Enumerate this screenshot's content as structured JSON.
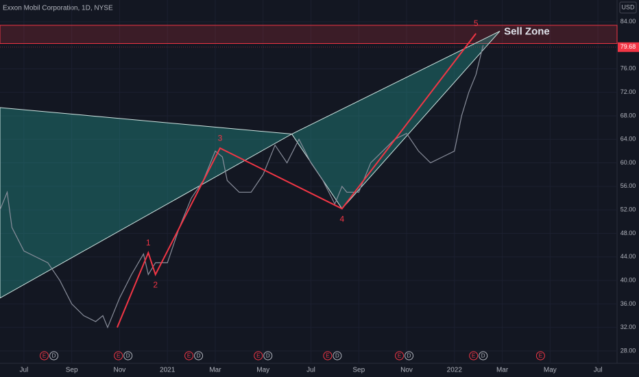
{
  "chart_data": {
    "type": "candlestick-pattern",
    "title": "Exxon Mobil Corporation, 1D, NYSE",
    "currency": "USD",
    "xlim": [
      0,
      25.8
    ],
    "xticks": [
      {
        "value": 1,
        "label": "Jul"
      },
      {
        "value": 3,
        "label": "Sep"
      },
      {
        "value": 5,
        "label": "Nov"
      },
      {
        "value": 7,
        "label": "2021"
      },
      {
        "value": 9,
        "label": "Mar"
      },
      {
        "value": 11,
        "label": "May"
      },
      {
        "value": 13,
        "label": "Jul"
      },
      {
        "value": 15,
        "label": "Sep"
      },
      {
        "value": 17,
        "label": "Nov"
      },
      {
        "value": 19,
        "label": "2022"
      },
      {
        "value": 21,
        "label": "Mar"
      },
      {
        "value": 23,
        "label": "May"
      },
      {
        "value": 25,
        "label": "Jul"
      }
    ],
    "ylim": [
      25.9,
      87.7
    ],
    "yticks": [
      {
        "value": 28,
        "label": "28.00"
      },
      {
        "value": 32,
        "label": "32.00"
      },
      {
        "value": 36,
        "label": "36.00"
      },
      {
        "value": 40,
        "label": "40.00"
      },
      {
        "value": 44,
        "label": "44.00"
      },
      {
        "value": 48,
        "label": "48.00"
      },
      {
        "value": 52,
        "label": "52.00"
      },
      {
        "value": 56,
        "label": "56.00"
      },
      {
        "value": 60,
        "label": "60.00"
      },
      {
        "value": 64,
        "label": "64.00"
      },
      {
        "value": 68,
        "label": "68.00"
      },
      {
        "value": 72,
        "label": "72.00"
      },
      {
        "value": 76,
        "label": "76.00"
      },
      {
        "value": 84,
        "label": "84.00"
      }
    ],
    "price": {
      "color": "#8a8f9c",
      "x": [
        0,
        0.3,
        0.5,
        1,
        1.5,
        2,
        2.5,
        3,
        3.5,
        4,
        4.3,
        4.5,
        5,
        5.5,
        6,
        6.2,
        6.5,
        7,
        7.5,
        8,
        8.5,
        9,
        9.3,
        9.5,
        10,
        10.5,
        11,
        11.5,
        12,
        12.5,
        13,
        13.5,
        14,
        14.3,
        14.5,
        15,
        15.5,
        16,
        16.5,
        17,
        17.5,
        18,
        18.5,
        19,
        19.3,
        19.6,
        19.9,
        20.2
      ],
      "values": [
        52,
        55,
        49,
        45,
        44,
        43,
        40,
        36,
        34,
        33,
        34,
        32,
        37,
        41,
        44.5,
        41,
        43,
        43,
        49,
        54,
        57,
        62,
        61,
        57,
        55,
        55,
        58,
        63,
        60,
        64,
        60,
        57,
        53,
        56,
        55,
        55,
        60,
        62,
        64,
        65,
        62,
        60,
        61,
        62,
        68,
        72,
        75,
        80
      ]
    },
    "last_price": 79.68,
    "sell_zone": {
      "label": "Sell Zone",
      "top": 83.4,
      "bottom": 80.3
    },
    "pattern": {
      "color": "#f23645",
      "x": [
        4.9,
        6.2,
        6.5,
        9.2,
        14.3,
        19.9
      ],
      "values": [
        32,
        44.7,
        41,
        62.5,
        52.2,
        82
      ],
      "labels": [
        null,
        "1",
        "2",
        "3",
        "4",
        "5"
      ]
    },
    "shapes": [
      {
        "x": [
          0,
          12.2,
          0
        ],
        "values": [
          69.4,
          64.9,
          37
        ]
      },
      {
        "x": [
          12.2,
          14.3,
          20.9
        ],
        "values": [
          64.9,
          52.2,
          82.4
        ]
      }
    ],
    "events": [
      {
        "x": 1.85,
        "labels": [
          "E",
          "D"
        ]
      },
      {
        "x": 4.95,
        "labels": [
          "E",
          "D"
        ]
      },
      {
        "x": 7.9,
        "labels": [
          "E",
          "D"
        ]
      },
      {
        "x": 10.8,
        "labels": [
          "E",
          "D"
        ]
      },
      {
        "x": 13.7,
        "labels": [
          "E",
          "D"
        ]
      },
      {
        "x": 16.7,
        "labels": [
          "E",
          "D"
        ]
      },
      {
        "x": 19.8,
        "labels": [
          "E",
          "D"
        ]
      },
      {
        "x": 22.6,
        "labels": [
          "E"
        ]
      }
    ]
  }
}
